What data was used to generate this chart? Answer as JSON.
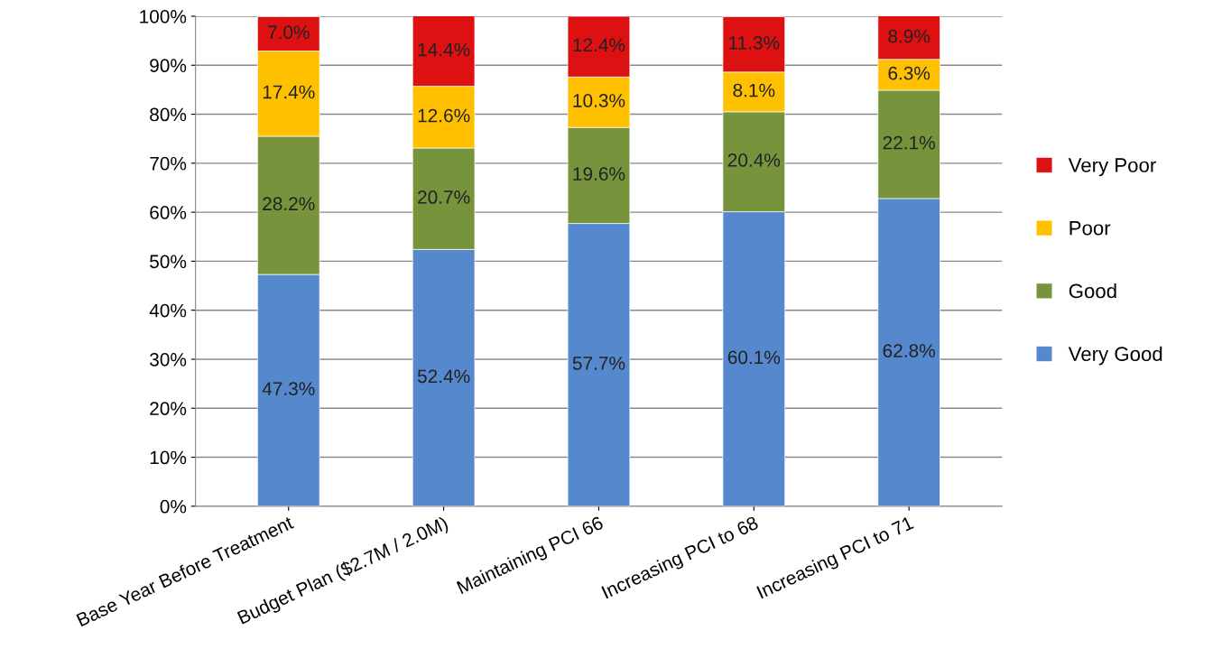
{
  "chart_data": {
    "type": "bar",
    "stacked": true,
    "categories": [
      "Base Year Before Treatment",
      "Budget Plan ($2.7M / 2.0M)",
      "Maintaining PCI 66",
      "Increasing PCI to 68",
      "Increasing PCI to 71"
    ],
    "series": [
      {
        "name": "Very Good",
        "color": "#5588cc",
        "values": [
          47.3,
          52.4,
          57.7,
          60.1,
          62.8
        ],
        "value_labels": [
          "47.3%",
          "52.4%",
          "57.7%",
          "60.1%",
          "62.8%"
        ]
      },
      {
        "name": "Good",
        "color": "#77933c",
        "values": [
          28.2,
          20.7,
          19.6,
          20.4,
          22.1
        ],
        "value_labels": [
          "28.2%",
          "20.7%",
          "19.6%",
          "20.4%",
          "22.1%"
        ]
      },
      {
        "name": "Poor",
        "color": "#ffc000",
        "values": [
          17.4,
          12.6,
          10.3,
          8.1,
          6.3
        ],
        "value_labels": [
          "17.4%",
          "12.6%",
          "10.3%",
          "8.1%",
          "6.3%"
        ]
      },
      {
        "name": "Very Poor",
        "color": "#dd1111",
        "values": [
          7.0,
          14.4,
          12.4,
          11.3,
          8.9
        ],
        "value_labels": [
          "7.0%",
          "14.4%",
          "12.4%",
          "11.3%",
          "8.9%"
        ]
      }
    ],
    "ylim": [
      0,
      100
    ],
    "yticks": [
      {
        "value": 0,
        "label": "0%"
      },
      {
        "value": 10,
        "label": "10%"
      },
      {
        "value": 20,
        "label": "20%"
      },
      {
        "value": 30,
        "label": "30%"
      },
      {
        "value": 40,
        "label": "40%"
      },
      {
        "value": 50,
        "label": "50%"
      },
      {
        "value": 60,
        "label": "60%"
      },
      {
        "value": 70,
        "label": "70%"
      },
      {
        "value": 80,
        "label": "80%"
      },
      {
        "value": 90,
        "label": "90%"
      },
      {
        "value": 100,
        "label": "100%"
      }
    ],
    "grid": "y",
    "legend": "right"
  }
}
